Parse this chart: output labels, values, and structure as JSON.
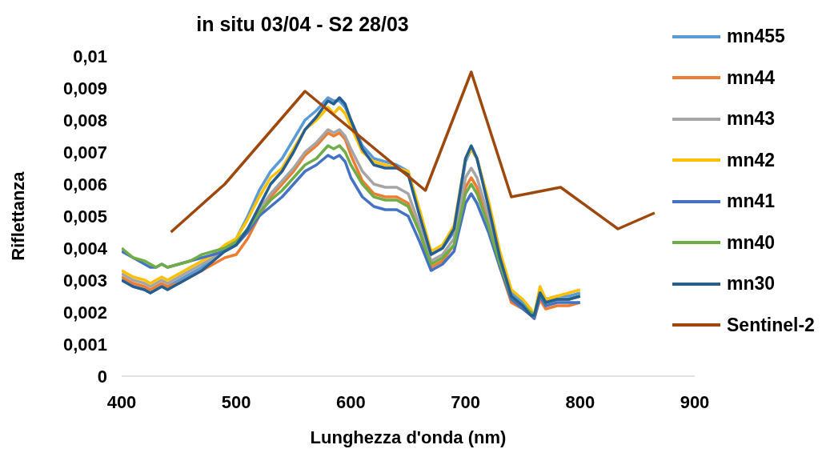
{
  "chart_data": {
    "type": "line",
    "title": "in situ 03/04 - S2 28/03",
    "xlabel": "Lunghezza d'onda (nm)",
    "ylabel": "Riflettanza",
    "x": [
      400,
      410,
      420,
      425,
      430,
      435,
      440,
      450,
      460,
      470,
      480,
      490,
      500,
      510,
      520,
      530,
      540,
      550,
      560,
      570,
      580,
      585,
      590,
      595,
      600,
      610,
      620,
      630,
      640,
      650,
      660,
      670,
      680,
      690,
      700,
      705,
      710,
      720,
      730,
      740,
      750,
      757,
      760,
      765,
      770,
      780,
      790,
      800
    ],
    "series": [
      {
        "name": "mn455",
        "color": "#5b9bd5",
        "values": [
          0.003,
          0.0028,
          0.0027,
          0.0026,
          0.0027,
          0.0028,
          0.0028,
          0.003,
          0.0032,
          0.0034,
          0.0037,
          0.004,
          0.0043,
          0.005,
          0.0058,
          0.0064,
          0.0068,
          0.0074,
          0.008,
          0.0083,
          0.0087,
          0.0086,
          0.0086,
          0.0084,
          0.008,
          0.0072,
          0.0068,
          0.0067,
          0.0066,
          0.0064,
          0.0051,
          0.0038,
          0.004,
          0.0045,
          0.0067,
          0.0071,
          0.0068,
          0.0054,
          0.0038,
          0.0026,
          0.0023,
          0.002,
          0.0019,
          0.0027,
          0.0024,
          0.0025,
          0.0025,
          0.0026
        ]
      },
      {
        "name": "mn44",
        "color": "#ed7d31",
        "values": [
          0.0031,
          0.0029,
          0.0028,
          0.0027,
          0.0028,
          0.0029,
          0.0028,
          0.0029,
          0.0031,
          0.0033,
          0.0035,
          0.0037,
          0.0038,
          0.0043,
          0.005,
          0.0056,
          0.006,
          0.0064,
          0.0069,
          0.0072,
          0.0076,
          0.0075,
          0.0076,
          0.0074,
          0.0069,
          0.0061,
          0.0057,
          0.0056,
          0.0056,
          0.0054,
          0.0045,
          0.0034,
          0.0036,
          0.0041,
          0.0059,
          0.0062,
          0.0059,
          0.0048,
          0.0034,
          0.0023,
          0.0021,
          0.0019,
          0.0018,
          0.0024,
          0.0021,
          0.0022,
          0.0022,
          0.0023
        ]
      },
      {
        "name": "mn43",
        "color": "#a5a5a5",
        "values": [
          0.0032,
          0.003,
          0.0029,
          0.0028,
          0.0029,
          0.003,
          0.0029,
          0.0031,
          0.0033,
          0.0035,
          0.0037,
          0.0039,
          0.0041,
          0.0046,
          0.0052,
          0.0057,
          0.0061,
          0.0065,
          0.007,
          0.0073,
          0.0077,
          0.0076,
          0.0077,
          0.0075,
          0.0071,
          0.0064,
          0.006,
          0.0059,
          0.0059,
          0.0057,
          0.0047,
          0.0036,
          0.0038,
          0.0043,
          0.0062,
          0.0065,
          0.0062,
          0.005,
          0.0036,
          0.0025,
          0.0022,
          0.002,
          0.0019,
          0.0026,
          0.0023,
          0.0024,
          0.0024,
          0.0025
        ]
      },
      {
        "name": "mn42",
        "color": "#ffc000",
        "values": [
          0.0033,
          0.0031,
          0.003,
          0.0029,
          0.003,
          0.0031,
          0.003,
          0.0032,
          0.0034,
          0.0036,
          0.0038,
          0.0041,
          0.0043,
          0.0049,
          0.0056,
          0.0062,
          0.0065,
          0.0071,
          0.0077,
          0.008,
          0.0084,
          0.0082,
          0.0084,
          0.0082,
          0.0078,
          0.007,
          0.0067,
          0.0066,
          0.0065,
          0.0064,
          0.0052,
          0.0039,
          0.0041,
          0.0047,
          0.0068,
          0.0071,
          0.0068,
          0.0055,
          0.0039,
          0.0027,
          0.0024,
          0.0021,
          0.0019,
          0.0028,
          0.0024,
          0.0025,
          0.0026,
          0.0027
        ]
      },
      {
        "name": "mn41",
        "color": "#4472c4",
        "values": [
          0.0039,
          0.0037,
          0.0035,
          0.0034,
          0.0034,
          0.0035,
          0.0034,
          0.0035,
          0.0036,
          0.0037,
          0.0038,
          0.0039,
          0.0041,
          0.0045,
          0.005,
          0.0053,
          0.0056,
          0.006,
          0.0064,
          0.0066,
          0.0069,
          0.0068,
          0.0069,
          0.0067,
          0.0062,
          0.0056,
          0.0053,
          0.0052,
          0.0052,
          0.005,
          0.0042,
          0.0033,
          0.0035,
          0.0039,
          0.0054,
          0.0057,
          0.0054,
          0.0045,
          0.0034,
          0.0024,
          0.0021,
          0.0019,
          0.0018,
          0.0025,
          0.0022,
          0.0023,
          0.0023,
          0.0023
        ]
      },
      {
        "name": "mn40",
        "color": "#70ad47",
        "values": [
          0.004,
          0.0037,
          0.0036,
          0.0035,
          0.0034,
          0.0035,
          0.0034,
          0.0035,
          0.0036,
          0.0038,
          0.0039,
          0.004,
          0.0042,
          0.0046,
          0.0051,
          0.0055,
          0.0058,
          0.0062,
          0.0066,
          0.0068,
          0.0072,
          0.0071,
          0.0072,
          0.007,
          0.0066,
          0.006,
          0.0056,
          0.0055,
          0.0055,
          0.0053,
          0.0045,
          0.0035,
          0.0037,
          0.0041,
          0.0057,
          0.006,
          0.0057,
          0.0047,
          0.0035,
          0.0025,
          0.0022,
          0.002,
          0.0019,
          0.0026,
          0.0023,
          0.0024,
          0.0024,
          0.0025
        ]
      },
      {
        "name": "mn30",
        "color": "#255e91",
        "values": [
          0.003,
          0.0028,
          0.0027,
          0.0026,
          0.0027,
          0.0028,
          0.0027,
          0.0029,
          0.0031,
          0.0033,
          0.0036,
          0.0039,
          0.0041,
          0.0046,
          0.0053,
          0.006,
          0.0064,
          0.007,
          0.0077,
          0.0081,
          0.0086,
          0.0085,
          0.0087,
          0.0085,
          0.008,
          0.0071,
          0.0066,
          0.0065,
          0.0065,
          0.0063,
          0.005,
          0.0038,
          0.004,
          0.0046,
          0.0068,
          0.0072,
          0.0068,
          0.0053,
          0.0037,
          0.0025,
          0.0022,
          0.0019,
          0.0019,
          0.0026,
          0.0023,
          0.0024,
          0.0024,
          0.0025
        ]
      },
      {
        "name": "Sentinel-2",
        "color": "#9e480e",
        "x": [
          443,
          490,
          560,
          665,
          705,
          740,
          783,
          833,
          865
        ],
        "values": [
          0.0045,
          0.006,
          0.0089,
          0.0058,
          0.0095,
          0.0056,
          0.0059,
          0.0046,
          0.0051
        ]
      }
    ],
    "xlim": [
      400,
      900
    ],
    "xticks": [
      400,
      500,
      600,
      700,
      800,
      900
    ],
    "ylim": [
      0,
      0.01
    ],
    "yticks": [
      0,
      {
        "value": 0.001,
        "label": "0,001"
      },
      {
        "value": 0.002,
        "label": "0,002"
      },
      {
        "value": 0.003,
        "label": "0,003"
      },
      {
        "value": 0.004,
        "label": "0,004"
      },
      {
        "value": 0.005,
        "label": "0,005"
      },
      {
        "value": 0.006,
        "label": "0,006"
      },
      {
        "value": 0.007,
        "label": "0,007"
      },
      {
        "value": 0.008,
        "label": "0,008"
      },
      {
        "value": 0.009,
        "label": "0,009"
      },
      {
        "value": 0.01,
        "label": "0,01"
      }
    ],
    "grid": false,
    "legend": "right",
    "marker": "none",
    "line_style": "solid"
  }
}
